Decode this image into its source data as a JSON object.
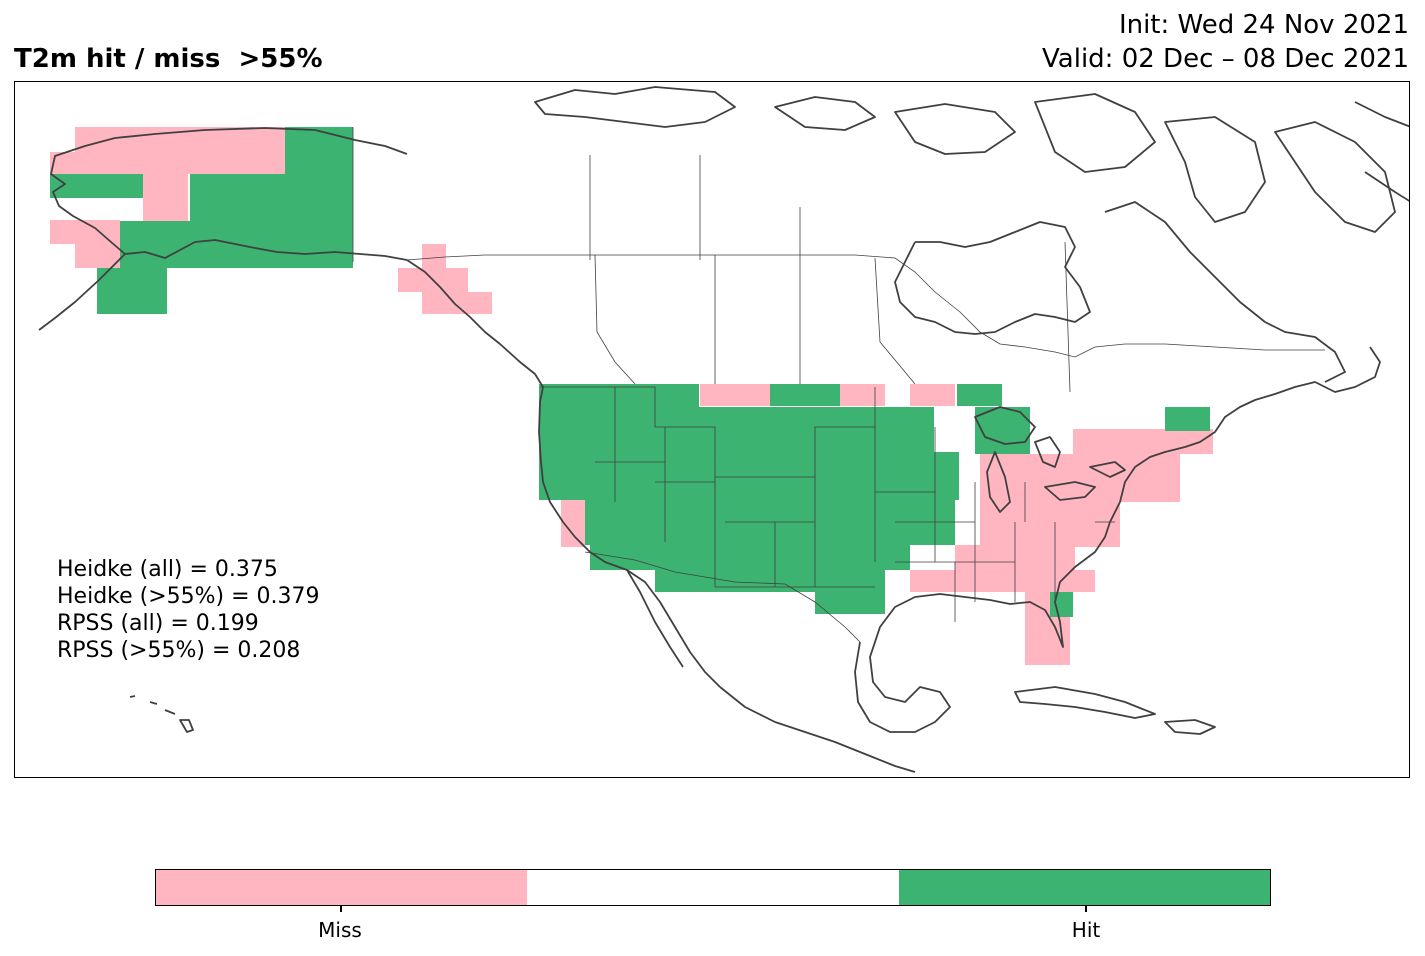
{
  "header": {
    "title": "T2m hit / miss  >55%",
    "init": "Init: Wed 24 Nov 2021",
    "valid": "Valid: 02 Dec – 08 Dec 2021"
  },
  "stats": [
    "Heidke (all) = 0.375",
    "Heidke (>55%) = 0.379",
    "RPSS (all) = 0.199",
    "RPSS (>55%) = 0.208"
  ],
  "colors": {
    "miss": "#ffb6c1",
    "neutral": "#ffffff",
    "hit": "#3cb371",
    "coast": "#404040"
  },
  "colorbar": {
    "miss_label": "Miss",
    "hit_label": "Hit"
  },
  "map_data": {
    "regions": [
      {
        "name": "Alaska",
        "category": "hit"
      },
      {
        "name": "Western Alaska",
        "category": "miss"
      },
      {
        "name": "Southeast Alaska",
        "category": "miss"
      },
      {
        "name": "Western and Central US",
        "category": "hit"
      },
      {
        "name": "Eastern US",
        "category": "miss"
      },
      {
        "name": "Florida",
        "category": "miss"
      },
      {
        "name": "Great Lakes",
        "category": "hit"
      },
      {
        "name": "Maine",
        "category": "hit"
      }
    ]
  }
}
